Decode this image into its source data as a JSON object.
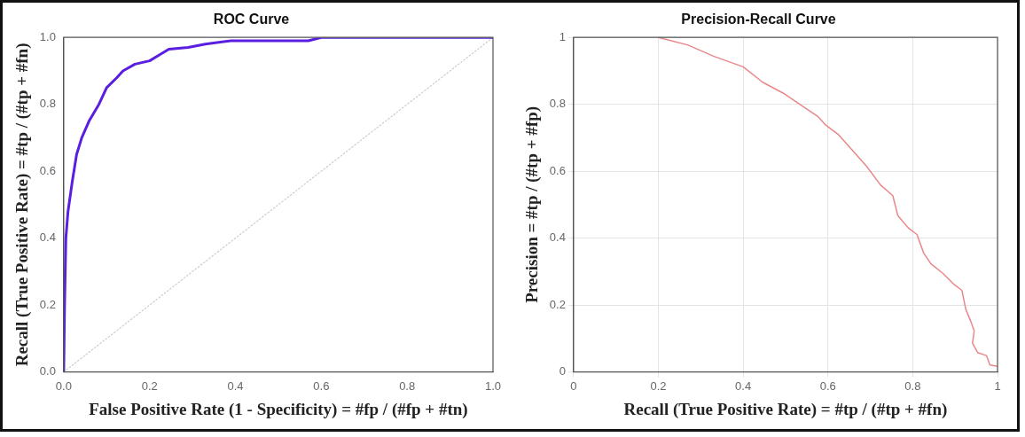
{
  "chart_data": [
    {
      "type": "line",
      "title": "ROC Curve",
      "xlabel": "False Positive Rate (1 - Specificity) = #fp / (#fp + #tn)",
      "ylabel": "Recall (True Positive Rate) = #tp / (#tp + #fn)",
      "xlim": [
        0,
        1
      ],
      "ylim": [
        0,
        1
      ],
      "xticks": [
        {
          "value": 0,
          "label": "0.0"
        },
        0.2,
        0.4,
        0.6,
        0.8,
        {
          "value": 1,
          "label": "1.0"
        }
      ],
      "yticks": [
        {
          "value": 0,
          "label": "0.0"
        },
        0.2,
        0.4,
        0.6,
        0.8,
        {
          "value": 1,
          "label": "1.0"
        }
      ],
      "grid": false,
      "marker": "none",
      "series": [
        {
          "color": "#5a1ee0",
          "x": [
            0,
            0.002,
            0.005,
            0.01,
            0.02,
            0.03,
            0.042,
            0.059,
            0.082,
            0.1,
            0.124,
            0.138,
            0.166,
            0.2,
            0.226,
            0.245,
            0.29,
            0.33,
            0.39,
            0.57,
            0.6,
            1
          ],
          "values": [
            0,
            0.2,
            0.4,
            0.48,
            0.57,
            0.65,
            0.7,
            0.75,
            0.8,
            0.85,
            0.88,
            0.9,
            0.92,
            0.93,
            0.95,
            0.965,
            0.97,
            0.98,
            0.99,
            0.99,
            1,
            1
          ]
        },
        {
          "color": "#cccccc",
          "line_style": "dotted",
          "x": [
            0,
            1
          ],
          "values": [
            0,
            1
          ]
        }
      ]
    },
    {
      "type": "line",
      "title": "Precision-Recall Curve",
      "xlabel": "Recall (True Positive Rate) = #tp / (#tp + #fn)",
      "ylabel": "Precision = #tp / (#tp + #fp)",
      "xlim": [
        0,
        1
      ],
      "ylim": [
        0,
        1
      ],
      "xticks": [
        0,
        0.2,
        0.4,
        0.6,
        0.8,
        1
      ],
      "yticks": [
        0,
        0.2,
        0.4,
        0.6,
        0.8,
        1
      ],
      "grid": true,
      "marker": "none",
      "series": [
        {
          "color": "#e8888a",
          "x": [
            0.2,
            0.27,
            0.33,
            0.4,
            0.446,
            0.495,
            0.528,
            0.577,
            0.593,
            0.626,
            0.659,
            0.691,
            0.724,
            0.753,
            0.765,
            0.79,
            0.81,
            0.826,
            0.843,
            0.871,
            0.896,
            0.916,
            0.925,
            0.937,
            0.945,
            0.941,
            0.953,
            0.974,
            0.982,
            1
          ],
          "values": [
            1,
            0.977,
            0.944,
            0.912,
            0.866,
            0.833,
            0.805,
            0.763,
            0.74,
            0.708,
            0.661,
            0.615,
            0.559,
            0.527,
            0.467,
            0.43,
            0.411,
            0.355,
            0.323,
            0.295,
            0.263,
            0.244,
            0.188,
            0.151,
            0.123,
            0.086,
            0.058,
            0.049,
            0.021,
            0.017
          ]
        }
      ]
    }
  ]
}
